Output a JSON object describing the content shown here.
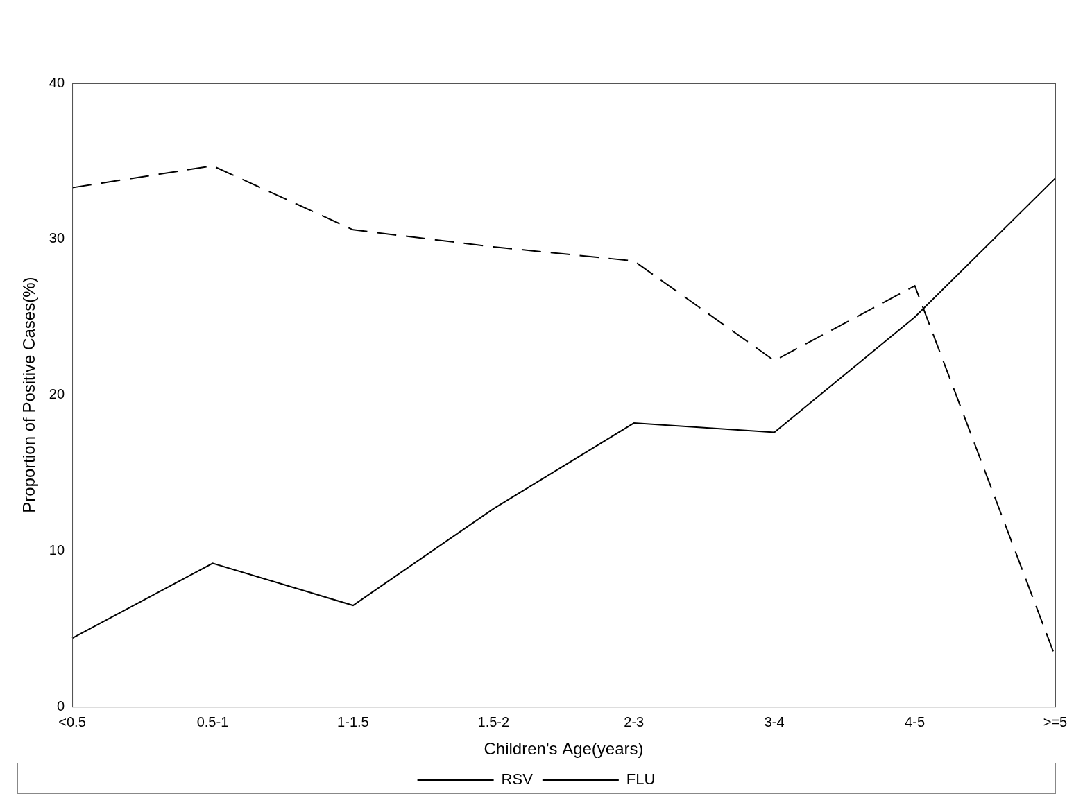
{
  "chart_data": {
    "type": "line",
    "x_label": "Children's Age(years)",
    "y_label": "Proportion of Positive Cases(%)",
    "categories": [
      "<0.5",
      "0.5-1",
      "1-1.5",
      "1.5-2",
      "2-3",
      "3-4",
      "4-5",
      ">=5"
    ],
    "series": [
      {
        "name": "RSV",
        "color": "#000000",
        "line_style": "dashed",
        "values": [
          33.3,
          34.7,
          30.6,
          29.5,
          28.6,
          22.2,
          27.0,
          3.2
        ]
      },
      {
        "name": "FLU",
        "color": "#000000",
        "line_style": "solid",
        "values": [
          4.4,
          9.2,
          6.5,
          12.7,
          18.2,
          17.6,
          25.0,
          33.9
        ]
      }
    ],
    "ylim": [
      0,
      40
    ],
    "yticks": [
      0,
      10,
      20,
      30,
      40
    ],
    "grid": false,
    "legend": "bottom"
  }
}
